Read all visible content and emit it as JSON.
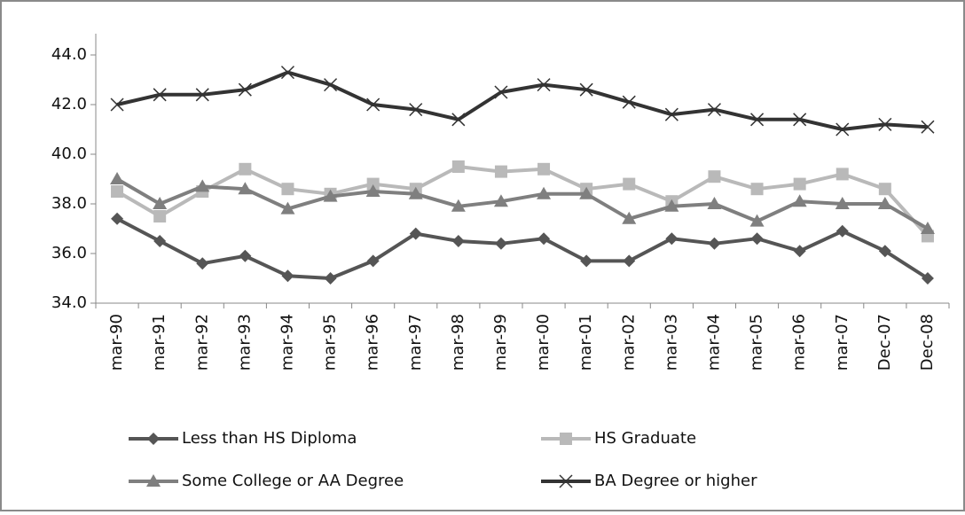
{
  "chart_data": {
    "type": "line",
    "categories": [
      "mar-90",
      "mar-91",
      "mar-92",
      "mar-93",
      "mar-94",
      "mar-95",
      "mar-96",
      "mar-97",
      "mar-98",
      "mar-99",
      "mar-00",
      "mar-01",
      "mar-02",
      "mar-03",
      "mar-04",
      "mar-05",
      "mar-06",
      "mar-07",
      "Dec-07",
      "Dec-08"
    ],
    "series": [
      {
        "name": "Less than HS Diploma",
        "color": "#555555",
        "marker": "diamond",
        "values": [
          37.4,
          36.5,
          35.6,
          35.9,
          35.1,
          35.0,
          35.7,
          36.8,
          36.5,
          36.4,
          36.6,
          35.7,
          35.7,
          36.6,
          36.4,
          36.6,
          36.1,
          36.9,
          36.1,
          35.0
        ]
      },
      {
        "name": "HS Graduate",
        "color": "#b9b9b9",
        "marker": "square",
        "values": [
          38.5,
          37.5,
          38.5,
          39.4,
          38.6,
          38.4,
          38.8,
          38.6,
          39.5,
          39.3,
          39.4,
          38.6,
          38.8,
          38.1,
          39.1,
          38.6,
          38.8,
          39.2,
          38.6,
          36.7
        ]
      },
      {
        "name": "Some College or AA Degree",
        "color": "#7f7f7f",
        "marker": "triangle",
        "values": [
          39.0,
          38.0,
          38.7,
          38.6,
          37.8,
          38.3,
          38.5,
          38.4,
          37.9,
          38.1,
          38.4,
          38.4,
          37.4,
          37.9,
          38.0,
          37.3,
          38.1,
          38.0,
          38.0,
          37.0
        ]
      },
      {
        "name": "BA Degree or higher",
        "color": "#333333",
        "marker": "x",
        "values": [
          42.0,
          42.4,
          42.4,
          42.6,
          43.3,
          42.8,
          42.0,
          41.8,
          41.4,
          42.5,
          42.8,
          42.6,
          42.1,
          41.6,
          41.8,
          41.4,
          41.4,
          41.0,
          41.2,
          41.1
        ]
      }
    ],
    "ylim": [
      34,
      44
    ],
    "yticks": [
      {
        "value": 34,
        "label": "34.0"
      },
      {
        "value": 36,
        "label": "36.0"
      },
      {
        "value": 38,
        "label": "38.0"
      },
      {
        "value": 40,
        "label": "40.0"
      },
      {
        "value": 42,
        "label": "42.0"
      },
      {
        "value": 44,
        "label": "44.0"
      }
    ],
    "grid": false,
    "legend": "bottom"
  }
}
